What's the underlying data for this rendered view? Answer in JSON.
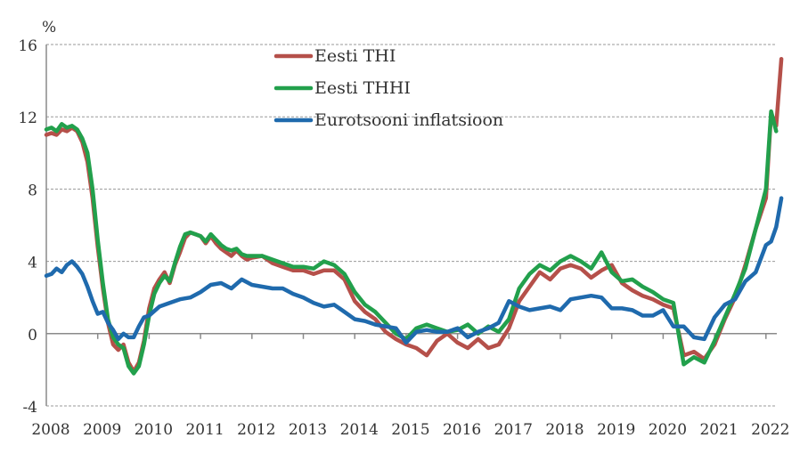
{
  "chart_data": {
    "type": "line",
    "title": "",
    "ylabel": "%",
    "xlabel": "",
    "ylim": [
      -4,
      16
    ],
    "xlim": [
      2008.0,
      2022.35
    ],
    "yticks": [
      "-4",
      "0",
      "4",
      "8",
      "12",
      "16"
    ],
    "ytick_values": [
      -4,
      0,
      4,
      8,
      12,
      16
    ],
    "xticks": [
      "2008",
      "2009",
      "2010",
      "2011",
      "2012",
      "2013",
      "2014",
      "2015",
      "2016",
      "2017",
      "2018",
      "2019",
      "2020",
      "2021",
      "2022"
    ],
    "grid": "horizontal-dashed",
    "legend_position": "top-center",
    "series": [
      {
        "name": "Eesti THI",
        "color": "#b5504a",
        "x": [
          2008.0,
          2008.1,
          2008.2,
          2008.3,
          2008.4,
          2008.5,
          2008.6,
          2008.7,
          2008.8,
          2008.9,
          2009.0,
          2009.1,
          2009.2,
          2009.3,
          2009.4,
          2009.5,
          2009.6,
          2009.7,
          2009.8,
          2009.9,
          2010.0,
          2010.1,
          2010.2,
          2010.3,
          2010.4,
          2010.5,
          2010.6,
          2010.7,
          2010.8,
          2010.9,
          2011.0,
          2011.1,
          2011.2,
          2011.3,
          2011.4,
          2011.5,
          2011.6,
          2011.7,
          2011.8,
          2011.9,
          2012.0,
          2012.2,
          2012.4,
          2012.6,
          2012.8,
          2013.0,
          2013.2,
          2013.4,
          2013.6,
          2013.8,
          2014.0,
          2014.2,
          2014.4,
          2014.6,
          2014.8,
          2015.0,
          2015.2,
          2015.4,
          2015.6,
          2015.8,
          2016.0,
          2016.2,
          2016.4,
          2016.6,
          2016.8,
          2017.0,
          2017.2,
          2017.4,
          2017.6,
          2017.8,
          2018.0,
          2018.2,
          2018.4,
          2018.6,
          2018.8,
          2019.0,
          2019.2,
          2019.4,
          2019.6,
          2019.8,
          2020.0,
          2020.2,
          2020.4,
          2020.6,
          2020.8,
          2021.0,
          2021.2,
          2021.4,
          2021.6,
          2021.8,
          2022.0,
          2022.1,
          2022.2,
          2022.3
        ],
        "values": [
          11.0,
          11.1,
          11.0,
          11.3,
          11.2,
          11.4,
          11.2,
          10.6,
          9.5,
          7.5,
          4.8,
          2.5,
          0.6,
          -0.6,
          -0.9,
          -0.6,
          -1.6,
          -2.1,
          -1.6,
          -0.4,
          1.4,
          2.5,
          3.0,
          3.4,
          2.8,
          3.8,
          4.5,
          5.3,
          5.6,
          5.5,
          5.4,
          5.0,
          5.4,
          5.0,
          4.7,
          4.5,
          4.3,
          4.6,
          4.3,
          4.1,
          4.2,
          4.3,
          3.9,
          3.7,
          3.5,
          3.5,
          3.3,
          3.5,
          3.5,
          3.0,
          1.8,
          1.2,
          0.8,
          0.1,
          -0.3,
          -0.6,
          -0.8,
          -1.2,
          -0.4,
          0.0,
          -0.5,
          -0.8,
          -0.3,
          -0.8,
          -0.6,
          0.3,
          1.8,
          2.6,
          3.4,
          3.0,
          3.6,
          3.8,
          3.6,
          3.1,
          3.5,
          3.8,
          2.8,
          2.4,
          2.1,
          1.9,
          1.6,
          1.4,
          -1.2,
          -1.0,
          -1.4,
          -0.6,
          0.8,
          2.0,
          3.8,
          5.8,
          7.5,
          12.2,
          11.5,
          15.2
        ]
      },
      {
        "name": "Eesti THHI",
        "color": "#22a04c",
        "x": [
          2008.0,
          2008.1,
          2008.2,
          2008.3,
          2008.4,
          2008.5,
          2008.6,
          2008.7,
          2008.8,
          2008.9,
          2009.0,
          2009.1,
          2009.2,
          2009.3,
          2009.4,
          2009.5,
          2009.6,
          2009.7,
          2009.8,
          2009.9,
          2010.0,
          2010.1,
          2010.2,
          2010.3,
          2010.4,
          2010.5,
          2010.6,
          2010.7,
          2010.8,
          2010.9,
          2011.0,
          2011.1,
          2011.2,
          2011.3,
          2011.4,
          2011.5,
          2011.6,
          2011.7,
          2011.8,
          2011.9,
          2012.0,
          2012.2,
          2012.4,
          2012.6,
          2012.8,
          2013.0,
          2013.2,
          2013.4,
          2013.6,
          2013.8,
          2014.0,
          2014.2,
          2014.4,
          2014.6,
          2014.8,
          2015.0,
          2015.2,
          2015.4,
          2015.6,
          2015.8,
          2016.0,
          2016.2,
          2016.4,
          2016.6,
          2016.8,
          2017.0,
          2017.2,
          2017.4,
          2017.6,
          2017.8,
          2018.0,
          2018.2,
          2018.4,
          2018.6,
          2018.8,
          2019.0,
          2019.2,
          2019.4,
          2019.6,
          2019.8,
          2020.0,
          2020.2,
          2020.4,
          2020.6,
          2020.8,
          2021.0,
          2021.2,
          2021.4,
          2021.6,
          2021.8,
          2022.0,
          2022.1,
          2022.2
        ],
        "values": [
          11.3,
          11.4,
          11.2,
          11.6,
          11.4,
          11.5,
          11.3,
          10.8,
          10.0,
          8.0,
          5.2,
          2.8,
          0.8,
          -0.2,
          -0.6,
          -0.8,
          -1.8,
          -2.2,
          -1.8,
          -0.6,
          1.0,
          2.2,
          2.8,
          3.2,
          2.9,
          3.9,
          4.8,
          5.5,
          5.6,
          5.5,
          5.4,
          5.1,
          5.5,
          5.2,
          4.9,
          4.7,
          4.6,
          4.7,
          4.4,
          4.3,
          4.3,
          4.3,
          4.1,
          3.9,
          3.7,
          3.7,
          3.6,
          4.0,
          3.8,
          3.3,
          2.3,
          1.6,
          1.2,
          0.6,
          0.0,
          -0.3,
          0.3,
          0.5,
          0.3,
          0.1,
          0.2,
          0.5,
          0.0,
          0.4,
          0.1,
          0.8,
          2.5,
          3.3,
          3.8,
          3.5,
          4.0,
          4.3,
          4.0,
          3.6,
          4.5,
          3.4,
          2.9,
          3.0,
          2.6,
          2.3,
          1.9,
          1.7,
          -1.7,
          -1.3,
          -1.6,
          -0.4,
          0.9,
          2.2,
          3.6,
          5.8,
          8.0,
          12.3,
          11.2
        ]
      },
      {
        "name": "Eurotsooni inflatsioon",
        "color": "#1f6aad",
        "x": [
          2008.0,
          2008.1,
          2008.2,
          2008.3,
          2008.4,
          2008.5,
          2008.6,
          2008.7,
          2008.8,
          2008.9,
          2009.0,
          2009.1,
          2009.2,
          2009.3,
          2009.4,
          2009.5,
          2009.6,
          2009.7,
          2009.8,
          2009.9,
          2010.0,
          2010.2,
          2010.4,
          2010.6,
          2010.8,
          2011.0,
          2011.2,
          2011.4,
          2011.6,
          2011.8,
          2012.0,
          2012.2,
          2012.4,
          2012.6,
          2012.8,
          2013.0,
          2013.2,
          2013.4,
          2013.6,
          2013.8,
          2014.0,
          2014.2,
          2014.4,
          2014.6,
          2014.8,
          2015.0,
          2015.2,
          2015.4,
          2015.6,
          2015.8,
          2016.0,
          2016.2,
          2016.4,
          2016.6,
          2016.8,
          2017.0,
          2017.2,
          2017.4,
          2017.6,
          2017.8,
          2018.0,
          2018.2,
          2018.4,
          2018.6,
          2018.8,
          2019.0,
          2019.2,
          2019.4,
          2019.6,
          2019.8,
          2020.0,
          2020.2,
          2020.4,
          2020.6,
          2020.8,
          2021.0,
          2021.2,
          2021.4,
          2021.6,
          2021.8,
          2022.0,
          2022.1,
          2022.2,
          2022.3
        ],
        "values": [
          3.2,
          3.3,
          3.6,
          3.4,
          3.8,
          4.0,
          3.7,
          3.3,
          2.6,
          1.8,
          1.1,
          1.2,
          0.6,
          0.2,
          -0.3,
          0.0,
          -0.2,
          -0.2,
          0.4,
          0.9,
          1.0,
          1.5,
          1.7,
          1.9,
          2.0,
          2.3,
          2.7,
          2.8,
          2.5,
          3.0,
          2.7,
          2.6,
          2.5,
          2.5,
          2.2,
          2.0,
          1.7,
          1.5,
          1.6,
          1.2,
          0.8,
          0.7,
          0.5,
          0.4,
          0.3,
          -0.5,
          0.1,
          0.2,
          0.1,
          0.1,
          0.3,
          -0.2,
          0.1,
          0.3,
          0.6,
          1.8,
          1.5,
          1.3,
          1.4,
          1.5,
          1.3,
          1.9,
          2.0,
          2.1,
          2.0,
          1.4,
          1.4,
          1.3,
          1.0,
          1.0,
          1.3,
          0.4,
          0.4,
          -0.2,
          -0.3,
          0.9,
          1.6,
          1.9,
          2.9,
          3.4,
          4.9,
          5.1,
          5.9,
          7.5
        ]
      }
    ]
  }
}
